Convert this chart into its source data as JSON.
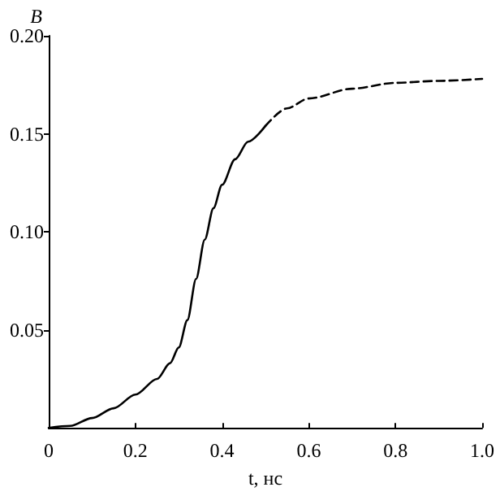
{
  "chart_data": {
    "type": "line",
    "xlabel": "t, нс",
    "ylabel": "B",
    "xlim": [
      0,
      1
    ],
    "xticks": [
      0,
      0.2,
      0.4,
      0.6,
      0.8,
      {
        "value": 1,
        "label": "1.0"
      }
    ],
    "ylim": [
      0,
      0.2
    ],
    "yticks": [
      0.05,
      {
        "value": 0.1,
        "label": "0.10"
      },
      0.15,
      {
        "value": 0.2,
        "label": "0.20"
      }
    ],
    "grid": false,
    "marker": "none",
    "series": [
      {
        "color": "#000000",
        "line_style": "solid",
        "x": [
          0,
          0.05,
          0.1,
          0.15,
          0.2,
          0.25,
          0.28,
          0.3,
          0.32,
          0.34,
          0.36,
          0.38,
          0.4,
          0.43,
          0.46,
          0.5
        ],
        "values": [
          0,
          0.001,
          0.005,
          0.01,
          0.017,
          0.025,
          0.033,
          0.041,
          0.055,
          0.076,
          0.096,
          0.112,
          0.124,
          0.137,
          0.146,
          0.154
        ]
      },
      {
        "color": "#000000",
        "line_style": "dashed",
        "x": [
          0.5,
          0.55,
          0.6,
          0.7,
          0.8,
          0.9,
          1
        ],
        "values": [
          0.154,
          0.163,
          0.168,
          0.173,
          0.176,
          0.177,
          0.178
        ]
      }
    ]
  }
}
